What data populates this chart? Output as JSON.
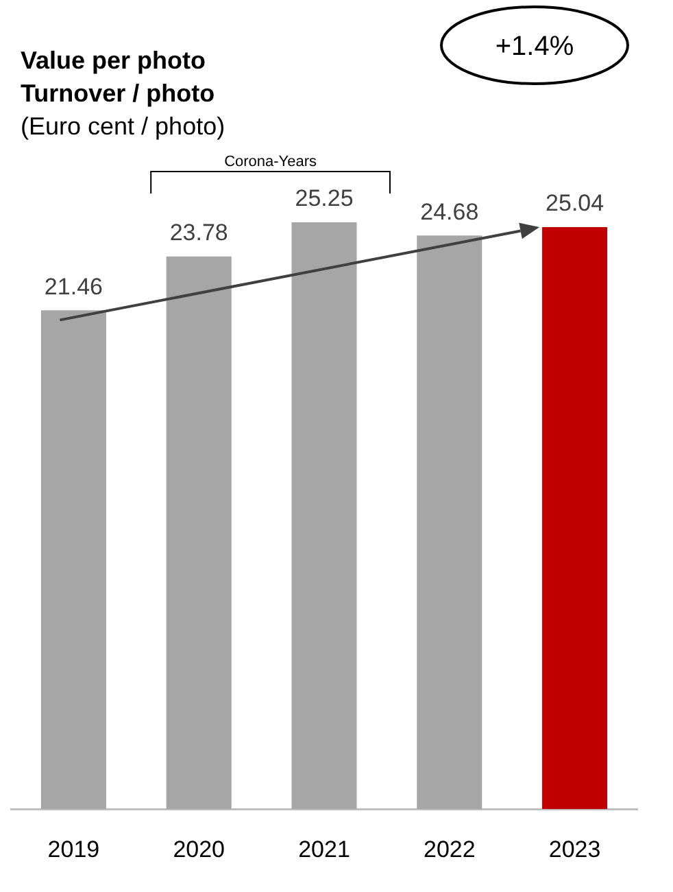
{
  "chart_data": {
    "type": "bar",
    "title": "Value per photo",
    "subtitle": "Turnover / photo",
    "ylabel": "(Euro cent / photo)",
    "categories": [
      "2019",
      "2020",
      "2021",
      "2022",
      "2023"
    ],
    "values": [
      21.46,
      23.78,
      25.25,
      24.68,
      25.04
    ],
    "colors": [
      "#a6a6a6",
      "#a6a6a6",
      "#a6a6a6",
      "#a6a6a6",
      "#c00000"
    ],
    "data_labels": true,
    "tick_labels": "x",
    "grid": false,
    "annotations": [
      "+1.4%",
      "Corona-Years"
    ]
  }
}
